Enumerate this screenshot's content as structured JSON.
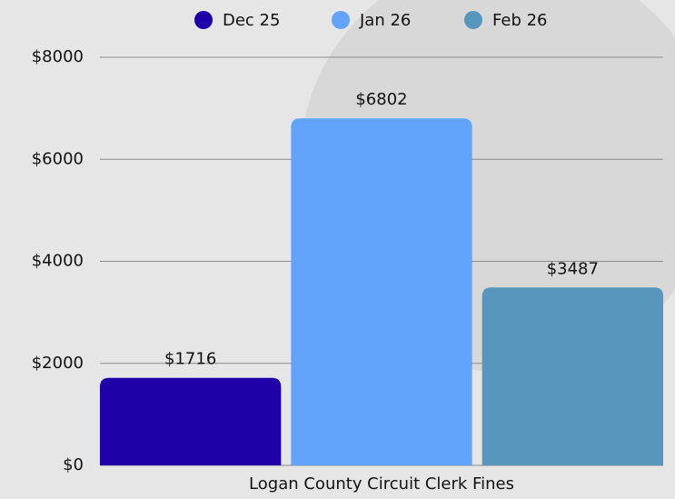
{
  "chart_data": {
    "type": "bar",
    "categories": [
      "Logan County Circuit Clerk Fines"
    ],
    "series": [
      {
        "name": "Dec 25",
        "color": "#2000a8",
        "values": [
          1716
        ],
        "value_labels": [
          "$1716"
        ]
      },
      {
        "name": "Jan 26",
        "color": "#62a3fb",
        "values": [
          6802
        ],
        "value_labels": [
          "$6802"
        ]
      },
      {
        "name": "Feb 26",
        "color": "#5897bd",
        "values": [
          3487
        ],
        "value_labels": [
          "$3487"
        ]
      }
    ],
    "ylim": [
      0,
      8000
    ],
    "yticks": [
      {
        "value": 0,
        "label": "$0"
      },
      {
        "value": 2000,
        "label": "$2000"
      },
      {
        "value": 4000,
        "label": "$4000"
      },
      {
        "value": 6000,
        "label": "$6000"
      },
      {
        "value": 8000,
        "label": "$8000"
      }
    ],
    "grid": true,
    "legend": "top"
  }
}
